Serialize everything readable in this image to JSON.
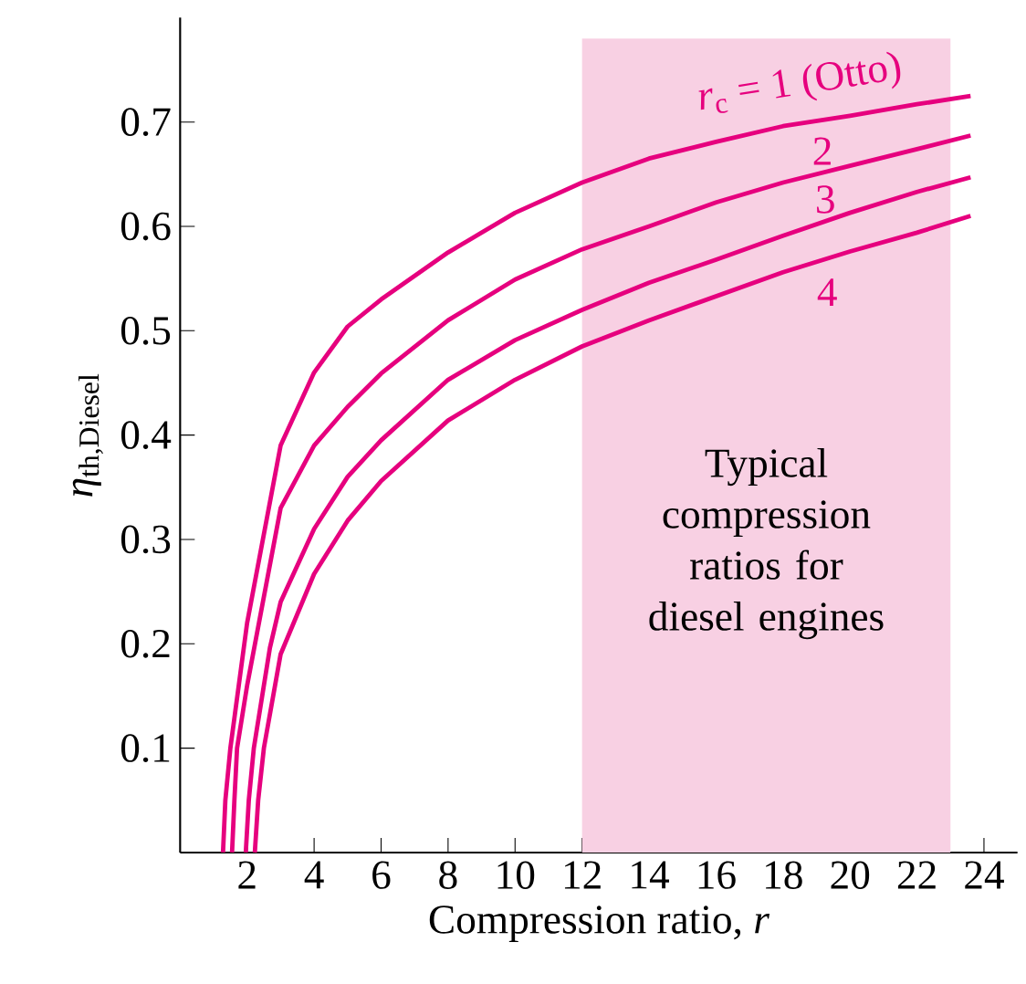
{
  "chart_data": {
    "type": "line",
    "xlabel": "Compression ratio, *r*",
    "ylabel": "*η*$_{th,Diesel}$",
    "xlim": [
      0,
      25
    ],
    "ylim": [
      0,
      0.8
    ],
    "xticks": [
      2,
      4,
      6,
      8,
      10,
      12,
      14,
      16,
      18,
      20,
      22,
      24
    ],
    "yticks": [
      {
        "value": 0.1,
        "label": "0.1"
      },
      {
        "value": 0.2,
        "label": "0.2"
      },
      {
        "value": 0.3,
        "label": "0.3"
      },
      {
        "value": 0.4,
        "label": "0.4"
      },
      {
        "value": 0.5,
        "label": "0.5"
      },
      {
        "value": 0.6,
        "label": "0.6"
      },
      {
        "value": 0.7,
        "label": "0.7"
      }
    ],
    "grid": false,
    "marker": "none",
    "line_style": "solid",
    "bands": [
      {
        "axis": "x",
        "from": 12,
        "to": 23,
        "label": "Typical compression ratios for diesel engines",
        "color": "#f8d0e3"
      }
    ],
    "series": [
      {
        "name": "*r*$_{c}$ = 1 (Otto)",
        "color": "#e6007e",
        "x": [
          1.28,
          1.35,
          1.5,
          2,
          3,
          4,
          5,
          6,
          8,
          10,
          12,
          14,
          16,
          18,
          20,
          22,
          23.6
        ],
        "values": [
          0,
          0.05,
          0.1,
          0.22,
          0.39,
          0.46,
          0.504,
          0.53,
          0.575,
          0.613,
          0.642,
          0.665,
          0.681,
          0.696,
          0.706,
          0.717,
          0.725
        ]
      },
      {
        "name": "2",
        "color": "#e6007e",
        "x": [
          1.55,
          1.62,
          1.7,
          2,
          3,
          4,
          5,
          6,
          8,
          10,
          12,
          14,
          16,
          18,
          20,
          22,
          23.6
        ],
        "values": [
          0,
          0.05,
          0.1,
          0.16,
          0.33,
          0.39,
          0.427,
          0.459,
          0.51,
          0.549,
          0.578,
          0.6,
          0.623,
          0.642,
          0.658,
          0.674,
          0.687
        ]
      },
      {
        "name": "3",
        "color": "#e6007e",
        "x": [
          1.96,
          2.05,
          2.2,
          2.68,
          3,
          4,
          5,
          6,
          8,
          10,
          12,
          14,
          16,
          18,
          20,
          22,
          23.6
        ],
        "values": [
          0,
          0.05,
          0.1,
          0.196,
          0.24,
          0.31,
          0.36,
          0.395,
          0.453,
          0.491,
          0.52,
          0.546,
          0.568,
          0.591,
          0.613,
          0.633,
          0.647
        ]
      },
      {
        "name": "4",
        "color": "#e6007e",
        "x": [
          2.23,
          2.33,
          2.5,
          3,
          4,
          5,
          6,
          8,
          10,
          12,
          14,
          16,
          18,
          20,
          22,
          23.6
        ],
        "values": [
          0,
          0.05,
          0.1,
          0.19,
          0.267,
          0.318,
          0.356,
          0.414,
          0.453,
          0.485,
          0.51,
          0.533,
          0.556,
          0.576,
          0.594,
          0.61
        ]
      }
    ]
  }
}
